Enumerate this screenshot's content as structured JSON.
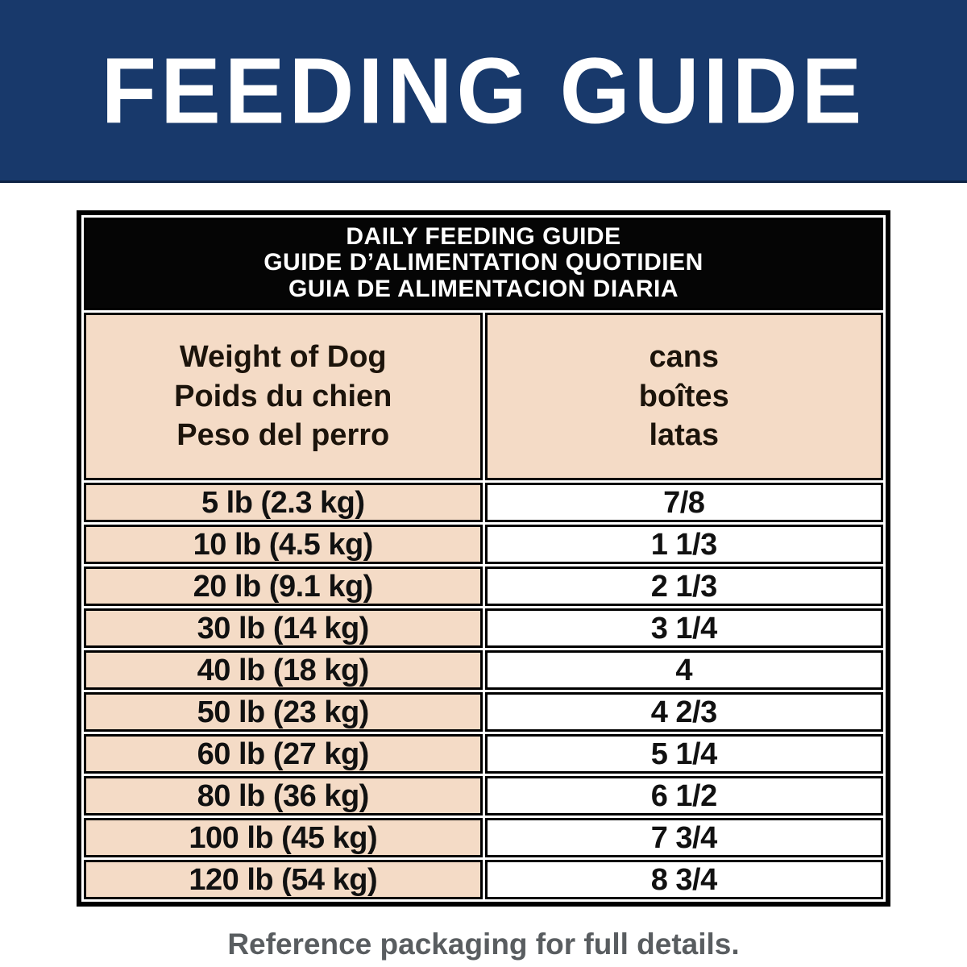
{
  "banner": {
    "title": "FEEDING GUIDE",
    "bg_color": "#18396b",
    "text_color": "#ffffff"
  },
  "table": {
    "title_lines": [
      "DAILY FEEDING GUIDE",
      "GUIDE D’ALIMENTATION QUOTIDIEN",
      "GUIA DE ALIMENTACION DIARIA"
    ],
    "column_headers": {
      "weight": [
        "Weight of Dog",
        "Poids du chien",
        "Peso del perro"
      ],
      "cans": [
        "cans",
        "boîtes",
        "latas"
      ]
    },
    "rows": [
      {
        "weight": "5 lb (2.3 kg)",
        "cans": "7/8"
      },
      {
        "weight": "10 lb (4.5 kg)",
        "cans": "1 1/3"
      },
      {
        "weight": "20 lb (9.1 kg)",
        "cans": "2 1/3"
      },
      {
        "weight": "30 lb (14 kg)",
        "cans": "3 1/4"
      },
      {
        "weight": "40 lb (18 kg)",
        "cans": "4"
      },
      {
        "weight": "50 lb (23 kg)",
        "cans": "4 2/3"
      },
      {
        "weight": "60 lb (27 kg)",
        "cans": "5 1/4"
      },
      {
        "weight": "80 lb (36 kg)",
        "cans": "6 1/2"
      },
      {
        "weight": "100 lb (45 kg)",
        "cans": "7 3/4"
      },
      {
        "weight": "120 lb (54 kg)",
        "cans": "8 3/4"
      }
    ],
    "colors": {
      "title_band_bg": "#050505",
      "title_band_text": "#ffffff",
      "weight_column_bg": "#f4dbc6",
      "cans_column_bg": "#ffffff",
      "border": "#000000"
    }
  },
  "footer": {
    "note": "Reference packaging for full details.",
    "text_color": "#595d60"
  }
}
